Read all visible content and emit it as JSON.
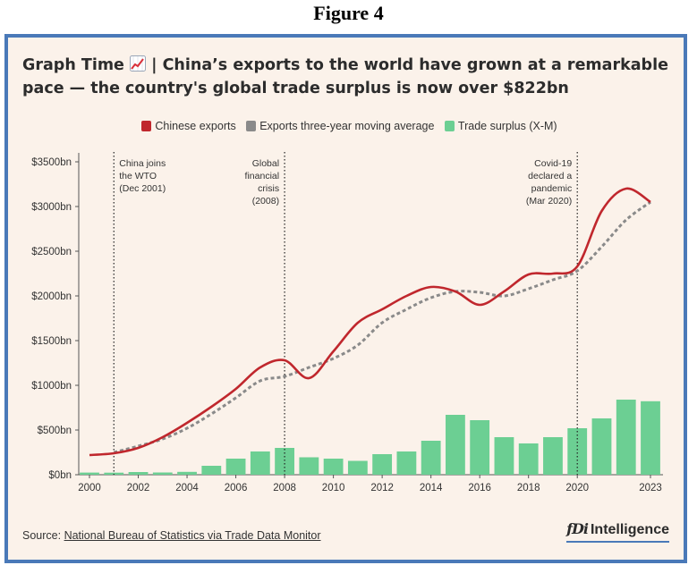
{
  "figure_heading": "Figure 4",
  "title": {
    "before_icon": "Graph Time ",
    "icon": "chart-increasing-icon",
    "after_icon": " | China’s exports to the world have grown at a remarkable pace — the country's global trade surplus is now over $822bn"
  },
  "source": {
    "prefix": "Source: ",
    "link_text": "National Bureau of Statistics via Trade Data Monitor"
  },
  "brand": {
    "mark": "fDi",
    "name": "Intelligence"
  },
  "colors": {
    "exports": "#c0272d",
    "moving_average": "#8a8a8a",
    "surplus": "#6ccf93",
    "frame": "#4a79b8",
    "background": "#fbf2ea"
  },
  "chart_data": {
    "type": "bar+line",
    "ylim": [
      0,
      3500
    ],
    "y_ticks": [
      {
        "value": 0,
        "label": "$0bn"
      },
      {
        "value": 500,
        "label": "$500bn"
      },
      {
        "value": 1000,
        "label": "$1000bn"
      },
      {
        "value": 1500,
        "label": "$1500bn"
      },
      {
        "value": 2000,
        "label": "$2000bn"
      },
      {
        "value": 2500,
        "label": "$2500bn"
      },
      {
        "value": 3000,
        "label": "$3000bn"
      },
      {
        "value": 3500,
        "label": "$3500bn"
      }
    ],
    "x_range": [
      2000,
      2023
    ],
    "x_tick_labels": [
      "2000",
      "2002",
      "2004",
      "2006",
      "2008",
      "2010",
      "2012",
      "2014",
      "2016",
      "2018",
      "2020",
      "2023"
    ],
    "x_tick_values": [
      2000,
      2002,
      2004,
      2006,
      2008,
      2010,
      2012,
      2014,
      2016,
      2018,
      2020,
      2023
    ],
    "legend": [
      "Chinese exports",
      "Exports three-year moving average",
      "Trade surplus (X-M)"
    ],
    "legend_position": "top-center",
    "grid": false,
    "series": [
      {
        "name": "Chinese exports",
        "kind": "line",
        "x": [
          2000,
          2001,
          2002,
          2003,
          2004,
          2005,
          2006,
          2007,
          2008,
          2009,
          2010,
          2011,
          2012,
          2013,
          2014,
          2015,
          2016,
          2017,
          2018,
          2019,
          2020,
          2021,
          2022,
          2023
        ],
        "values": [
          220,
          240,
          300,
          420,
          580,
          760,
          960,
          1200,
          1280,
          1080,
          1380,
          1700,
          1850,
          2000,
          2100,
          2050,
          1900,
          2050,
          2240,
          2250,
          2330,
          2950,
          3200,
          3050
        ]
      },
      {
        "name": "Exports three-year moving average",
        "kind": "dashed-line",
        "x": [
          2001,
          2002,
          2003,
          2004,
          2005,
          2006,
          2007,
          2008,
          2009,
          2010,
          2011,
          2012,
          2013,
          2014,
          2015,
          2016,
          2017,
          2018,
          2019,
          2020,
          2021,
          2022,
          2023
        ],
        "values": [
          250,
          320,
          400,
          520,
          680,
          860,
          1050,
          1100,
          1200,
          1300,
          1450,
          1700,
          1850,
          1980,
          2050,
          2040,
          2000,
          2080,
          2180,
          2280,
          2550,
          2850,
          3050
        ]
      },
      {
        "name": "Trade surplus (X-M)",
        "kind": "bar",
        "x": [
          2000,
          2001,
          2002,
          2003,
          2004,
          2005,
          2006,
          2007,
          2008,
          2009,
          2010,
          2011,
          2012,
          2013,
          2014,
          2015,
          2016,
          2017,
          2018,
          2019,
          2020,
          2021,
          2022,
          2023
        ],
        "values": [
          24,
          23,
          30,
          25,
          32,
          100,
          180,
          260,
          300,
          195,
          180,
          155,
          230,
          260,
          380,
          670,
          610,
          420,
          350,
          420,
          520,
          630,
          840,
          822
        ]
      }
    ],
    "annotations": [
      {
        "x": 2001,
        "lines": [
          "China joins",
          "the WTO",
          "(Dec 2001)"
        ],
        "align": "left"
      },
      {
        "x": 2008,
        "lines": [
          "Global",
          "financial",
          "crisis",
          "(2008)"
        ],
        "align": "right"
      },
      {
        "x": 2020,
        "lines": [
          "Covid-19",
          "declared a",
          "pandemic",
          "(Mar 2020)"
        ],
        "align": "right"
      }
    ]
  }
}
